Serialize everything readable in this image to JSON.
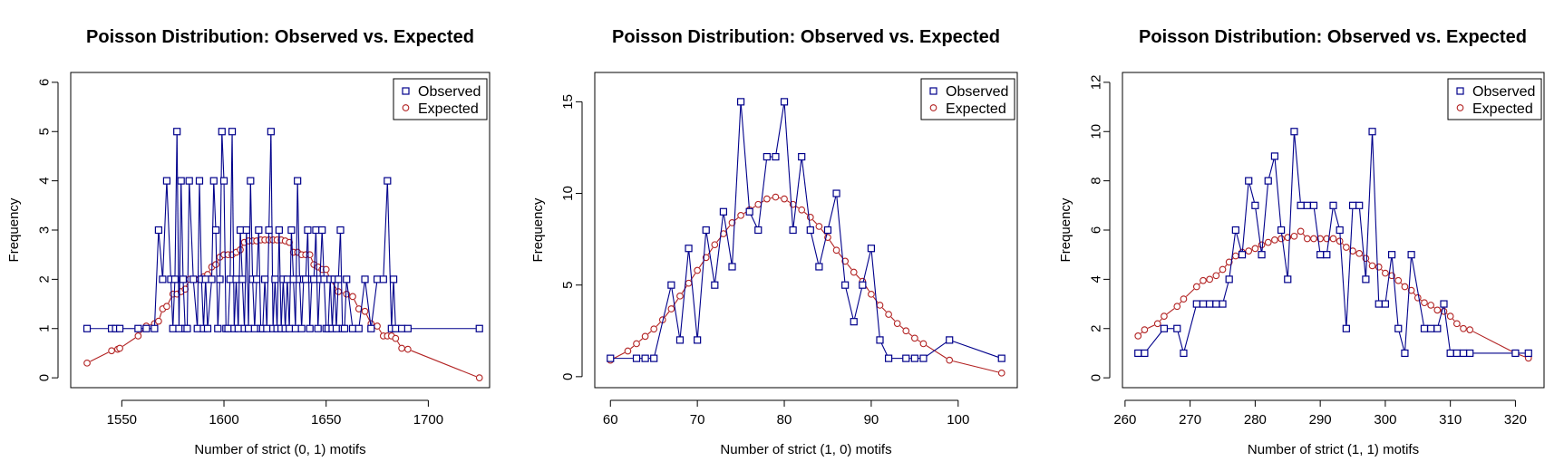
{
  "chart_data": [
    {
      "type": "line",
      "title": "Poisson Distribution: Observed vs. Expected",
      "xlabel": "Number of strict (0, 1) motifs",
      "ylabel": "Frequency",
      "xlim": [
        1525,
        1730
      ],
      "ylim": [
        -0.2,
        6.2
      ],
      "xticks": [
        1550,
        1600,
        1650,
        1700
      ],
      "yticks": [
        0,
        1,
        2,
        3,
        4,
        5,
        6
      ],
      "legend": {
        "position": "top-right",
        "entries": [
          "Observed",
          "Expected"
        ]
      },
      "series": [
        {
          "name": "Observed",
          "color": "#00008b",
          "marker": "square",
          "x": [
            1533,
            1545,
            1547,
            1549,
            1558,
            1562,
            1566,
            1568,
            1570,
            1572,
            1574,
            1575,
            1576,
            1577,
            1578,
            1579,
            1580,
            1581,
            1582,
            1583,
            1585,
            1587,
            1588,
            1589,
            1590,
            1591,
            1592,
            1594,
            1595,
            1596,
            1597,
            1598,
            1599,
            1600,
            1601,
            1602,
            1603,
            1604,
            1605,
            1606,
            1607,
            1608,
            1609,
            1610,
            1611,
            1612,
            1613,
            1614,
            1615,
            1616,
            1617,
            1618,
            1619,
            1620,
            1621,
            1622,
            1623,
            1624,
            1625,
            1626,
            1627,
            1628,
            1629,
            1630,
            1631,
            1632,
            1633,
            1634,
            1635,
            1636,
            1637,
            1638,
            1639,
            1640,
            1641,
            1642,
            1643,
            1644,
            1645,
            1646,
            1647,
            1648,
            1649,
            1650,
            1651,
            1652,
            1653,
            1654,
            1655,
            1656,
            1657,
            1658,
            1659,
            1660,
            1663,
            1666,
            1669,
            1672,
            1675,
            1678,
            1680,
            1682,
            1683,
            1684,
            1687,
            1690,
            1725
          ],
          "y": [
            1,
            1,
            1,
            1,
            1,
            1,
            1,
            3,
            2,
            4,
            2,
            1,
            2,
            5,
            1,
            4,
            2,
            1,
            1,
            4,
            2,
            1,
            4,
            2,
            1,
            2,
            1,
            2,
            4,
            3,
            1,
            2,
            5,
            4,
            1,
            1,
            2,
            5,
            1,
            2,
            1,
            3,
            2,
            1,
            3,
            1,
            4,
            2,
            1,
            2,
            3,
            1,
            1,
            2,
            1,
            3,
            5,
            1,
            2,
            1,
            3,
            1,
            2,
            1,
            2,
            1,
            3,
            2,
            1,
            4,
            2,
            1,
            2,
            2,
            3,
            1,
            2,
            2,
            3,
            1,
            2,
            3,
            2,
            1,
            1,
            2,
            1,
            2,
            1,
            2,
            3,
            1,
            1,
            2,
            1,
            1,
            2,
            1,
            2,
            2,
            4,
            1,
            2,
            1,
            1,
            1,
            1
          ]
        },
        {
          "name": "Expected",
          "color": "#b22222",
          "marker": "circle",
          "x": [
            1533,
            1545,
            1548,
            1549,
            1558,
            1562,
            1566,
            1568,
            1570,
            1572,
            1575,
            1577,
            1579,
            1581,
            1583,
            1586,
            1588,
            1590,
            1592,
            1594,
            1596,
            1598,
            1600,
            1602,
            1604,
            1606,
            1608,
            1610,
            1612,
            1614,
            1616,
            1618,
            1620,
            1622,
            1624,
            1626,
            1628,
            1630,
            1632,
            1634,
            1636,
            1638,
            1640,
            1642,
            1644,
            1646,
            1648,
            1650,
            1652,
            1656,
            1660,
            1663,
            1666,
            1669,
            1672,
            1675,
            1678,
            1680,
            1682,
            1684,
            1687,
            1690,
            1725
          ],
          "y": [
            0.3,
            0.55,
            0.58,
            0.6,
            0.85,
            1.05,
            1.1,
            1.15,
            1.4,
            1.45,
            1.7,
            1.7,
            1.75,
            1.8,
            2.0,
            2.0,
            2.0,
            2.05,
            2.1,
            2.25,
            2.3,
            2.45,
            2.5,
            2.5,
            2.5,
            2.55,
            2.6,
            2.75,
            2.78,
            2.78,
            2.78,
            2.8,
            2.8,
            2.8,
            2.8,
            2.8,
            2.8,
            2.78,
            2.75,
            2.55,
            2.55,
            2.5,
            2.5,
            2.5,
            2.3,
            2.25,
            2.2,
            2.2,
            2.0,
            1.75,
            1.7,
            1.65,
            1.4,
            1.35,
            1.1,
            1.05,
            0.85,
            0.85,
            0.85,
            0.8,
            0.6,
            0.58,
            0.0
          ]
        }
      ]
    },
    {
      "type": "line",
      "title": "Poisson Distribution: Observed vs. Expected",
      "xlabel": "Number of strict (1, 0) motifs",
      "ylabel": "Frequency",
      "xlim": [
        58.2,
        106.8
      ],
      "ylim": [
        -0.6,
        16.6
      ],
      "xticks": [
        60,
        70,
        80,
        90,
        100
      ],
      "yticks": [
        0,
        5,
        10,
        15
      ],
      "legend": {
        "position": "top-right",
        "entries": [
          "Observed",
          "Expected"
        ]
      },
      "series": [
        {
          "name": "Observed",
          "color": "#00008b",
          "marker": "square",
          "x": [
            60,
            63,
            64,
            65,
            67,
            68,
            69,
            70,
            71,
            72,
            73,
            74,
            75,
            76,
            77,
            78,
            79,
            80,
            81,
            82,
            83,
            84,
            85,
            86,
            87,
            88,
            89,
            90,
            91,
            92,
            94,
            95,
            96,
            99,
            105
          ],
          "y": [
            1,
            1,
            1,
            1,
            5,
            2,
            7,
            2,
            8,
            5,
            9,
            6,
            15,
            9,
            8,
            12,
            12,
            15,
            8,
            12,
            8,
            6,
            8,
            10,
            5,
            3,
            5,
            7,
            2,
            1,
            1,
            1,
            1,
            2,
            1
          ]
        },
        {
          "name": "Expected",
          "color": "#b22222",
          "marker": "circle",
          "x": [
            60,
            62,
            63,
            64,
            65,
            66,
            67,
            68,
            69,
            70,
            71,
            72,
            73,
            74,
            75,
            76,
            77,
            78,
            79,
            80,
            81,
            82,
            83,
            84,
            85,
            86,
            87,
            88,
            89,
            90,
            91,
            92,
            93,
            94,
            95,
            96,
            99,
            105
          ],
          "y": [
            0.9,
            1.4,
            1.8,
            2.2,
            2.6,
            3.1,
            3.7,
            4.4,
            5.1,
            5.8,
            6.5,
            7.2,
            7.8,
            8.4,
            8.8,
            9.1,
            9.4,
            9.7,
            9.8,
            9.7,
            9.4,
            9.1,
            8.7,
            8.2,
            7.6,
            6.9,
            6.3,
            5.7,
            5.2,
            4.5,
            3.9,
            3.4,
            2.9,
            2.5,
            2.1,
            1.8,
            0.9,
            0.2
          ]
        }
      ]
    },
    {
      "type": "line",
      "title": "Poisson Distribution: Observed vs. Expected",
      "xlabel": "Number of strict (1, 1) motifs",
      "ylabel": "Frequency",
      "xlim": [
        259.6,
        324.4
      ],
      "ylim": [
        -0.4,
        12.4
      ],
      "xticks": [
        260,
        270,
        280,
        290,
        300,
        310,
        320
      ],
      "yticks": [
        0,
        2,
        4,
        6,
        8,
        10,
        12
      ],
      "legend": {
        "position": "top-right",
        "entries": [
          "Observed",
          "Expected"
        ]
      },
      "series": [
        {
          "name": "Observed",
          "color": "#00008b",
          "marker": "square",
          "x": [
            262,
            263,
            266,
            268,
            269,
            271,
            272,
            273,
            274,
            275,
            276,
            277,
            278,
            279,
            280,
            281,
            282,
            283,
            284,
            285,
            286,
            287,
            288,
            289,
            290,
            291,
            292,
            293,
            294,
            295,
            296,
            297,
            298,
            299,
            300,
            301,
            302,
            303,
            304,
            306,
            307,
            308,
            309,
            310,
            311,
            312,
            313,
            320,
            322
          ],
          "y": [
            1,
            1,
            2,
            2,
            1,
            3,
            3,
            3,
            3,
            3,
            4,
            6,
            5,
            8,
            7,
            5,
            8,
            9,
            6,
            4,
            10,
            7,
            7,
            7,
            5,
            5,
            7,
            6,
            2,
            7,
            7,
            4,
            10,
            3,
            3,
            5,
            2,
            1,
            5,
            2,
            2,
            2,
            3,
            1,
            1,
            1,
            1,
            1,
            1
          ]
        },
        {
          "name": "Expected",
          "color": "#b22222",
          "marker": "circle",
          "x": [
            262,
            263,
            265,
            266,
            268,
            269,
            271,
            272,
            273,
            274,
            275,
            276,
            277,
            278,
            279,
            280,
            281,
            282,
            283,
            284,
            285,
            286,
            287,
            288,
            289,
            290,
            291,
            292,
            293,
            294,
            295,
            296,
            297,
            298,
            299,
            300,
            301,
            302,
            303,
            304,
            305,
            306,
            307,
            308,
            309,
            310,
            311,
            312,
            313,
            320,
            322
          ],
          "y": [
            1.7,
            1.95,
            2.2,
            2.5,
            2.9,
            3.2,
            3.7,
            3.95,
            4.0,
            4.15,
            4.4,
            4.7,
            4.95,
            5.1,
            5.15,
            5.25,
            5.4,
            5.5,
            5.6,
            5.65,
            5.7,
            5.75,
            5.95,
            5.65,
            5.65,
            5.65,
            5.65,
            5.65,
            5.55,
            5.3,
            5.15,
            5.05,
            4.85,
            4.55,
            4.5,
            4.25,
            4.15,
            3.95,
            3.7,
            3.55,
            3.25,
            3.05,
            2.95,
            2.75,
            2.7,
            2.5,
            2.2,
            2.0,
            1.95,
            1.0,
            0.8
          ]
        }
      ]
    }
  ]
}
